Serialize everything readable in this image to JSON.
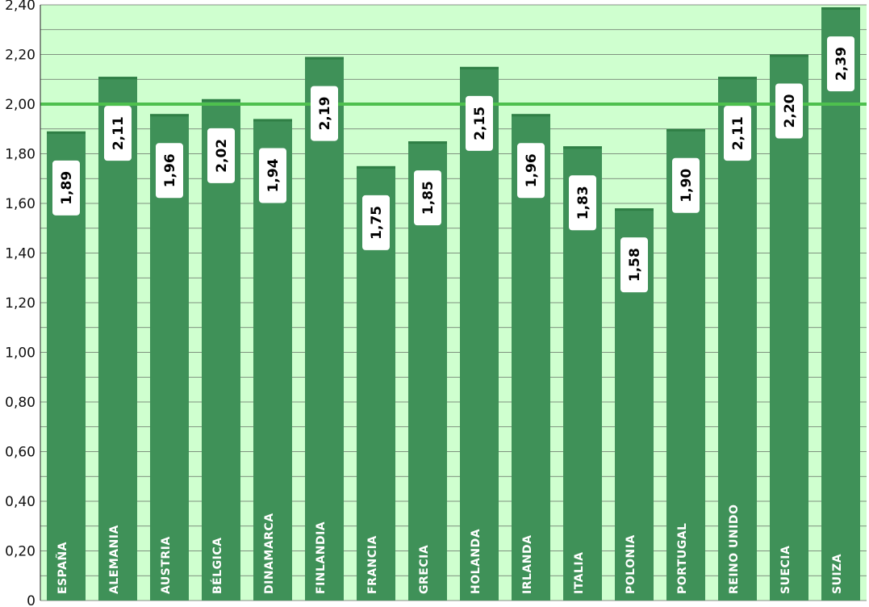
{
  "chart_data": {
    "type": "bar",
    "categories": [
      "ESPAÑA",
      "ALEMANIA",
      "AUSTRIA",
      "BÉLGICA",
      "DINAMARCA",
      "FINLANDIA",
      "FRANCIA",
      "GRECIA",
      "HOLANDA",
      "IRLANDA",
      "ITALIA",
      "POLONIA",
      "PORTUGAL",
      "REINO UNIDO",
      "SUECIA",
      "SUIZA"
    ],
    "values": [
      1.89,
      2.11,
      1.96,
      2.02,
      1.94,
      2.19,
      1.75,
      1.85,
      2.15,
      1.96,
      1.83,
      1.58,
      1.9,
      2.11,
      2.2,
      2.39
    ],
    "value_labels": [
      "1,89",
      "2,11",
      "1,96",
      "2,02",
      "1,94",
      "2,19",
      "1,75",
      "1,85",
      "2,15",
      "1,96",
      "1,83",
      "1,58",
      "1,90",
      "2,11",
      "2,20",
      "2,39"
    ],
    "reference_line": 2.0,
    "ylim": [
      0,
      2.4
    ],
    "y_ticks": [
      0,
      0.2,
      0.4,
      0.6,
      0.8,
      1.0,
      1.2,
      1.4,
      1.6,
      1.8,
      2.0,
      2.2,
      2.4
    ],
    "y_tick_labels": [
      "0",
      "0,20",
      "0,40",
      "0,60",
      "0,80",
      "1,00",
      "1,20",
      "1,40",
      "1,60",
      "1,80",
      "2,00",
      "2,20",
      "2,40"
    ],
    "grid": true,
    "colors": {
      "bar": "#3f9158",
      "bar_dark": "#2f7f45",
      "plot_background": "#cfffcf",
      "reference_line": "#4ec04e",
      "gridline": "#4a4a4a"
    }
  }
}
